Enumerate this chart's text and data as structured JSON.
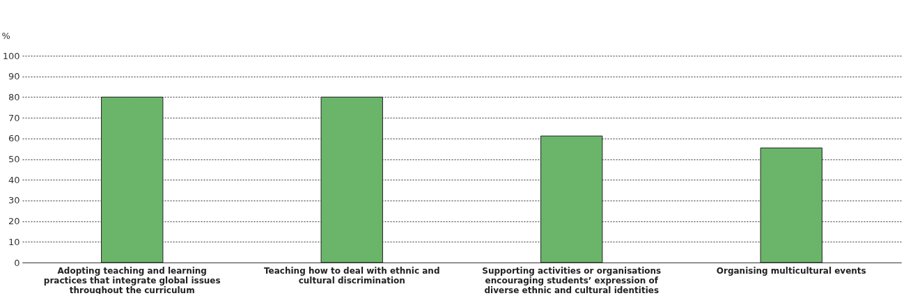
{
  "chart_data": {
    "type": "bar",
    "ylabel": "%",
    "categories": [
      "Adopting teaching and learning practices that integrate global issues throughout the curriculum",
      "Teaching how to deal with ethnic and cultural discrimination",
      "Supporting activities or organisations encouraging students’ expression of diverse ethnic and cultural identities",
      "Organising multicultural events"
    ],
    "values": [
      80,
      80,
      61.2,
      55.4
    ],
    "color": "#6bb56b",
    "ylim": [
      0,
      100
    ],
    "yticks": [
      0,
      10,
      20,
      30,
      40,
      50,
      60,
      70,
      80,
      90,
      100
    ],
    "grid": "y"
  }
}
